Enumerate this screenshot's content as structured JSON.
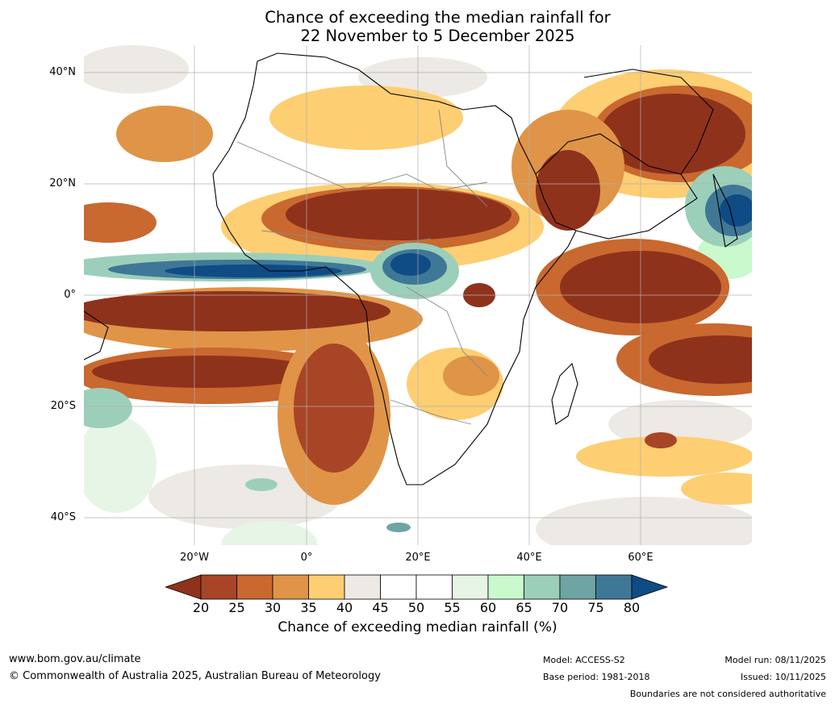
{
  "title": {
    "line1": "Chance of exceeding the median rainfall for",
    "line2": "22 November to 5 December 2025"
  },
  "axes": {
    "lat_labels": [
      "40°N",
      "20°N",
      "0°",
      "20°S",
      "40°S"
    ],
    "lon_labels": [
      "20°W",
      "0°",
      "20°E",
      "40°E",
      "60°E"
    ]
  },
  "colorbar": {
    "ticks": [
      "20",
      "25",
      "30",
      "35",
      "40",
      "45",
      "50",
      "55",
      "60",
      "65",
      "70",
      "75",
      "80"
    ],
    "label": "Chance of exceeding median rainfall (%)",
    "colors": [
      "#8f321c",
      "#a84527",
      "#c9682f",
      "#e09447",
      "#fdce72",
      "#ede9e4",
      "#ffffff",
      "#ffffff",
      "#e7f5e7",
      "#c9f9cc",
      "#9ccfba",
      "#6ea4a4",
      "#3f7896",
      "#0f4b85"
    ]
  },
  "footer": {
    "website": "www.bom.gov.au/climate",
    "copyright": "© Commonwealth of Australia 2025, Australian Bureau of Meteorology",
    "model": "Model: ACCESS-S2",
    "base_period": "Base period: 1981-2018",
    "model_run": "Model run: 08/11/2025",
    "issued": "Issued: 10/11/2025",
    "disclaimer": "Boundaries are not considered authoritative"
  }
}
